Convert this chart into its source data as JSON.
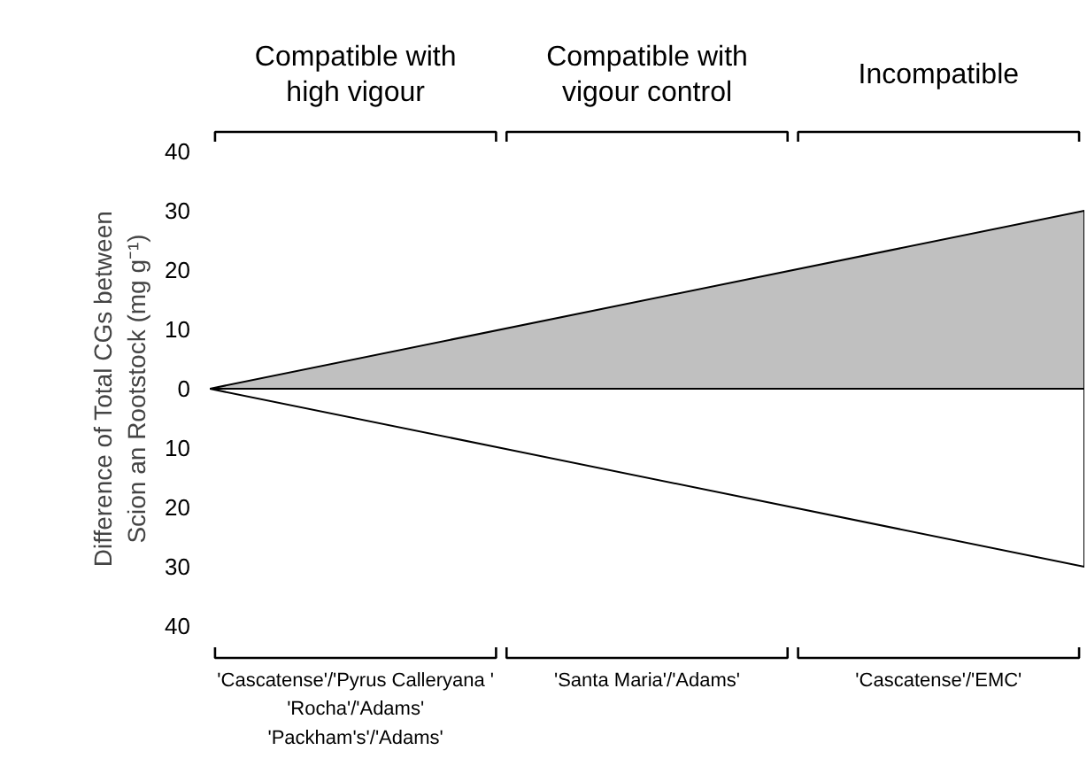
{
  "chart_data": {
    "type": "area",
    "categories": [
      null,
      null
    ],
    "series": [
      {
        "color": "#c0c0c0",
        "values": [
          0,
          30
        ]
      },
      {
        "color": "#ffffff",
        "values": [
          0,
          -30
        ]
      }
    ],
    "ylabel": "Difference of Total CGs between Scion an Rootstock (mg g⁻¹)",
    "ylim": [
      -40,
      40
    ],
    "yticks": [
      {
        "value": -40,
        "label": "40"
      },
      {
        "value": -30,
        "label": "30"
      },
      {
        "value": -20,
        "label": "20"
      },
      {
        "value": -10,
        "label": "10"
      },
      0,
      10,
      20,
      30,
      40
    ],
    "tick_labels": "y",
    "grid": false,
    "annotations": [
      "Compatible with high vigour",
      "Compatible with vigour control",
      "Incompatible",
      "'Cascatense'/'Pyrus Calleryana '\n'Rocha'/'Adams'\n'Packham's'/'Adams'",
      "'Santa Maria'/'Adams'",
      "'Cascatense'/'EMC'"
    ]
  }
}
